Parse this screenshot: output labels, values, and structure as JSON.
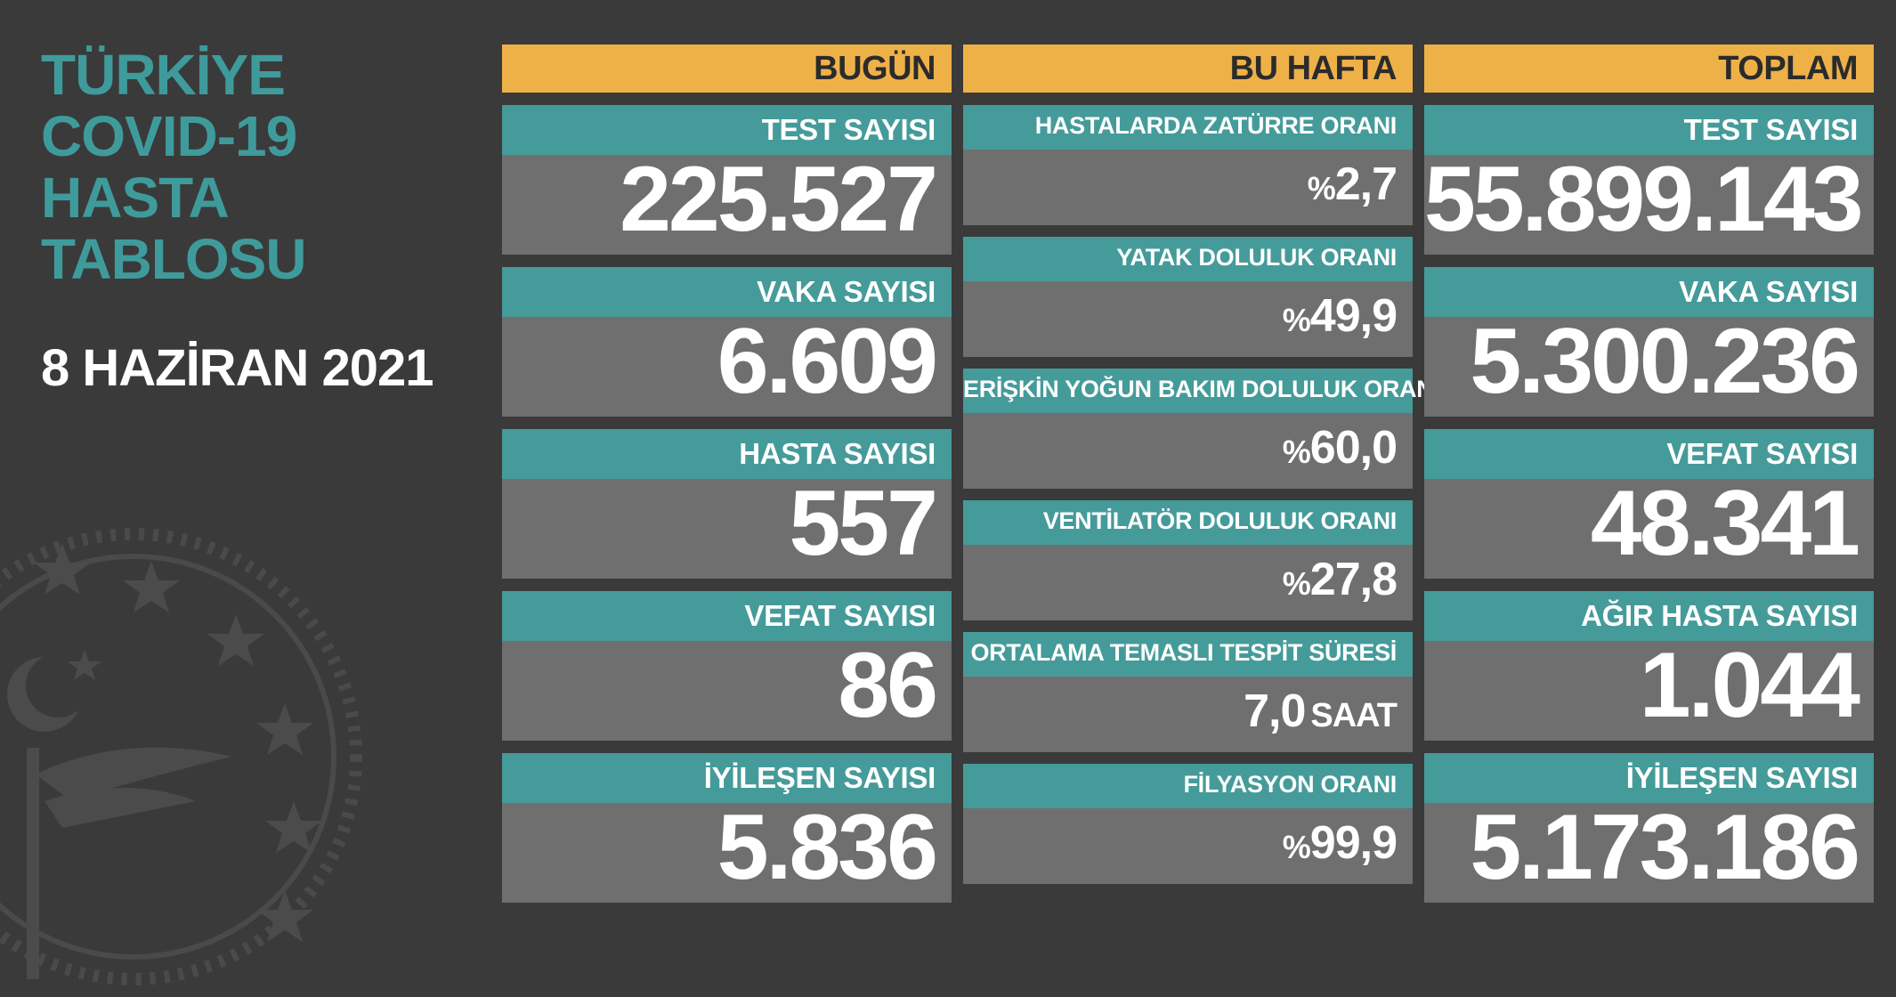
{
  "title_lines": [
    "TÜRKİYE",
    "COVID-19",
    "HASTA",
    "TABLOSU"
  ],
  "date": "8 HAZİRAN 2021",
  "colors": {
    "background": "#3a3a3a",
    "header": "#eeb148",
    "label": "#459b9a",
    "value_bg": "#6f6f6f",
    "title": "#3f9b9b"
  },
  "today": {
    "header": "BUGÜN",
    "items": [
      {
        "label": "TEST SAYISI",
        "value": "225.527"
      },
      {
        "label": "VAKA SAYISI",
        "value": "6.609"
      },
      {
        "label": "HASTA SAYISI",
        "value": "557"
      },
      {
        "label": "VEFAT SAYISI",
        "value": "86"
      },
      {
        "label": "İYİLEŞEN SAYISI",
        "value": "5.836"
      }
    ]
  },
  "week": {
    "header": "BU HAFTA",
    "items": [
      {
        "label": "HASTALARDA ZATÜRRE ORANI",
        "prefix": "%",
        "value": "2,7",
        "suffix": ""
      },
      {
        "label": "YATAK DOLULUK ORANI",
        "prefix": "%",
        "value": "49,9",
        "suffix": ""
      },
      {
        "label": "ERİŞKİN YOĞUN BAKIM DOLULUK ORANI",
        "prefix": "%",
        "value": "60,0",
        "suffix": ""
      },
      {
        "label": "VENTİLATÖR DOLULUK ORANI",
        "prefix": "%",
        "value": "27,8",
        "suffix": ""
      },
      {
        "label": "ORTALAMA TEMASLI TESPİT SÜRESİ",
        "prefix": "",
        "value": "7,0",
        "suffix": "SAAT"
      },
      {
        "label": "FİLYASYON ORANI",
        "prefix": "%",
        "value": "99,9",
        "suffix": ""
      }
    ]
  },
  "total": {
    "header": "TOPLAM",
    "items": [
      {
        "label": "TEST SAYISI",
        "value": "55.899.143"
      },
      {
        "label": "VAKA SAYISI",
        "value": "5.300.236"
      },
      {
        "label": "VEFAT SAYISI",
        "value": "48.341"
      },
      {
        "label": "AĞIR HASTA SAYISI",
        "value": "1.044"
      },
      {
        "label": "İYİLEŞEN SAYISI",
        "value": "5.173.186"
      }
    ]
  }
}
